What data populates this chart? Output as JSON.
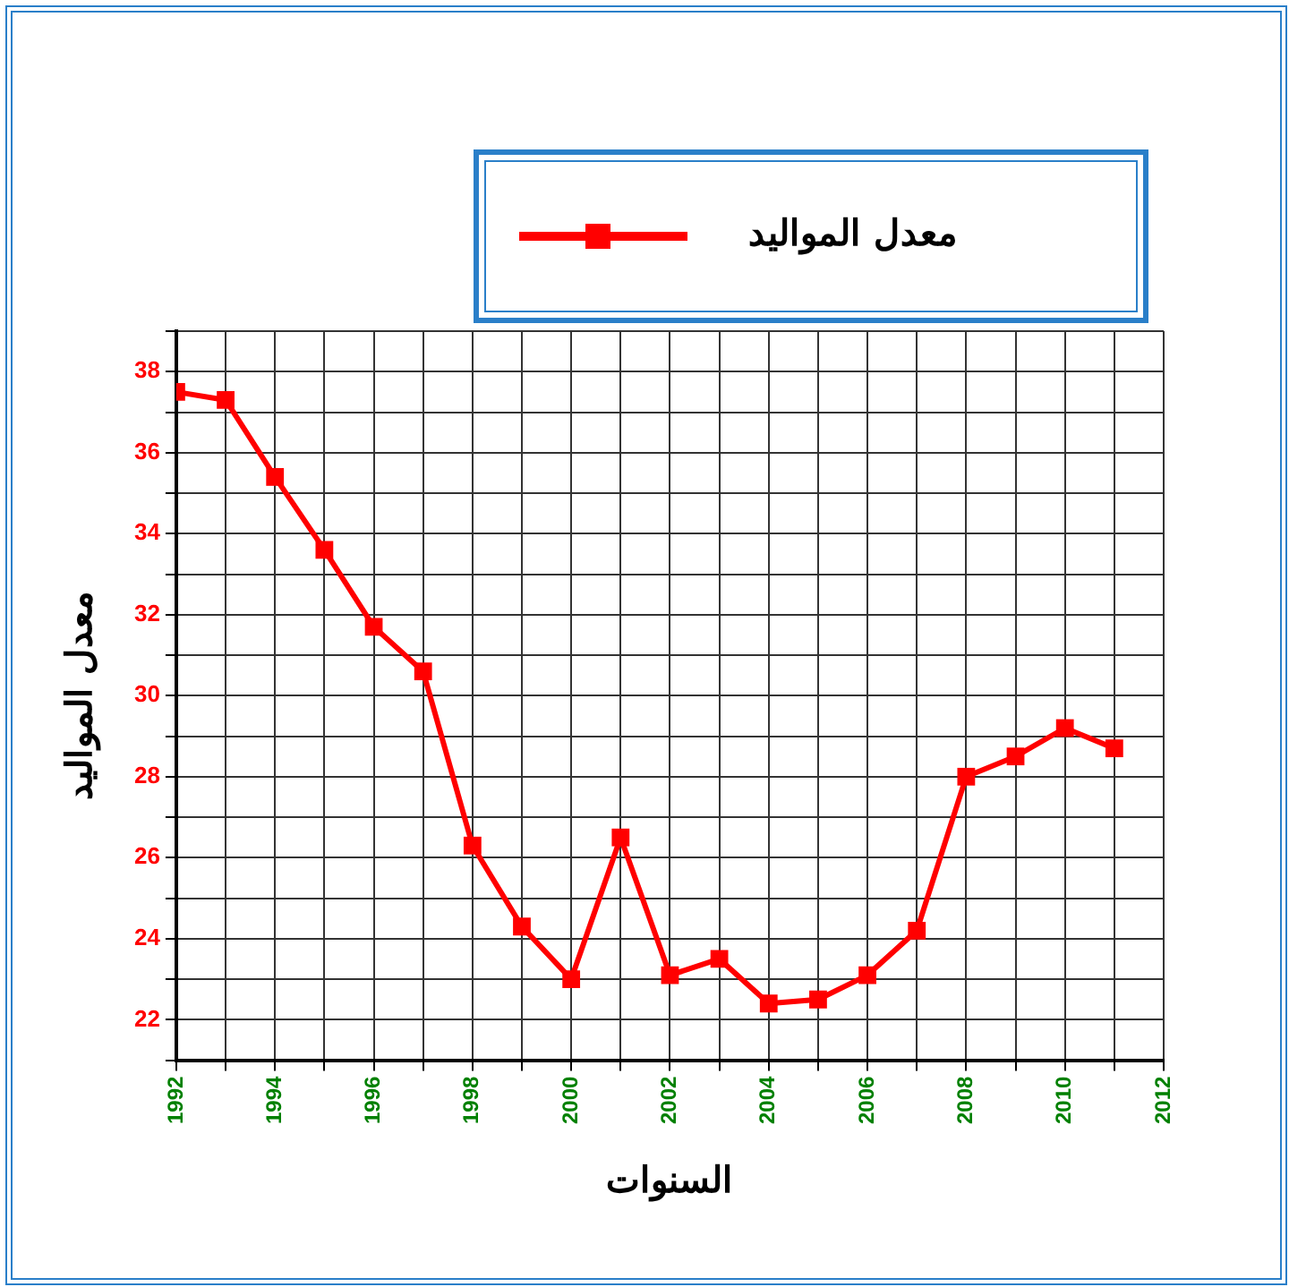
{
  "chart_data": {
    "type": "line",
    "xlabel": "السنوات",
    "ylabel": "معدل المواليد",
    "x": [
      1992,
      1993,
      1994,
      1995,
      1996,
      1997,
      1998,
      1999,
      2000,
      2001,
      2002,
      2003,
      2004,
      2005,
      2006,
      2007,
      2008,
      2009,
      2010,
      2011
    ],
    "series": [
      {
        "name": "معدل المواليد",
        "color": "#ff0000",
        "values": [
          37.5,
          37.3,
          35.4,
          33.6,
          31.7,
          30.6,
          26.3,
          24.3,
          23.0,
          26.5,
          23.1,
          23.5,
          22.4,
          22.5,
          23.1,
          24.2,
          28.0,
          28.5,
          29.2,
          28.7
        ]
      }
    ],
    "xlim": [
      1992,
      2012
    ],
    "xticks": [
      1992,
      {
        "value": 1993,
        "label": null
      },
      1994,
      {
        "value": 1995,
        "label": null
      },
      1996,
      {
        "value": 1997,
        "label": null
      },
      1998,
      {
        "value": 1999,
        "label": null
      },
      2000,
      {
        "value": 2001,
        "label": null
      },
      2002,
      {
        "value": 2003,
        "label": null
      },
      2004,
      {
        "value": 2005,
        "label": null
      },
      2006,
      {
        "value": 2007,
        "label": null
      },
      2008,
      {
        "value": 2009,
        "label": null
      },
      2010,
      {
        "value": 2011,
        "label": null
      },
      2012
    ],
    "ylim": [
      21,
      39
    ],
    "yticks": [
      {
        "value": 21,
        "label": null
      },
      22,
      {
        "value": 23,
        "label": null
      },
      24,
      {
        "value": 25,
        "label": null
      },
      26,
      {
        "value": 27,
        "label": null
      },
      28,
      {
        "value": 29,
        "label": null
      },
      30,
      {
        "value": 31,
        "label": null
      },
      32,
      {
        "value": 33,
        "label": null
      },
      34,
      {
        "value": 35,
        "label": null
      },
      36,
      {
        "value": 37,
        "label": null
      },
      38,
      {
        "value": 39,
        "label": null
      }
    ],
    "grid": true,
    "legend": "top right",
    "marker": "square",
    "line_style": "solid"
  }
}
